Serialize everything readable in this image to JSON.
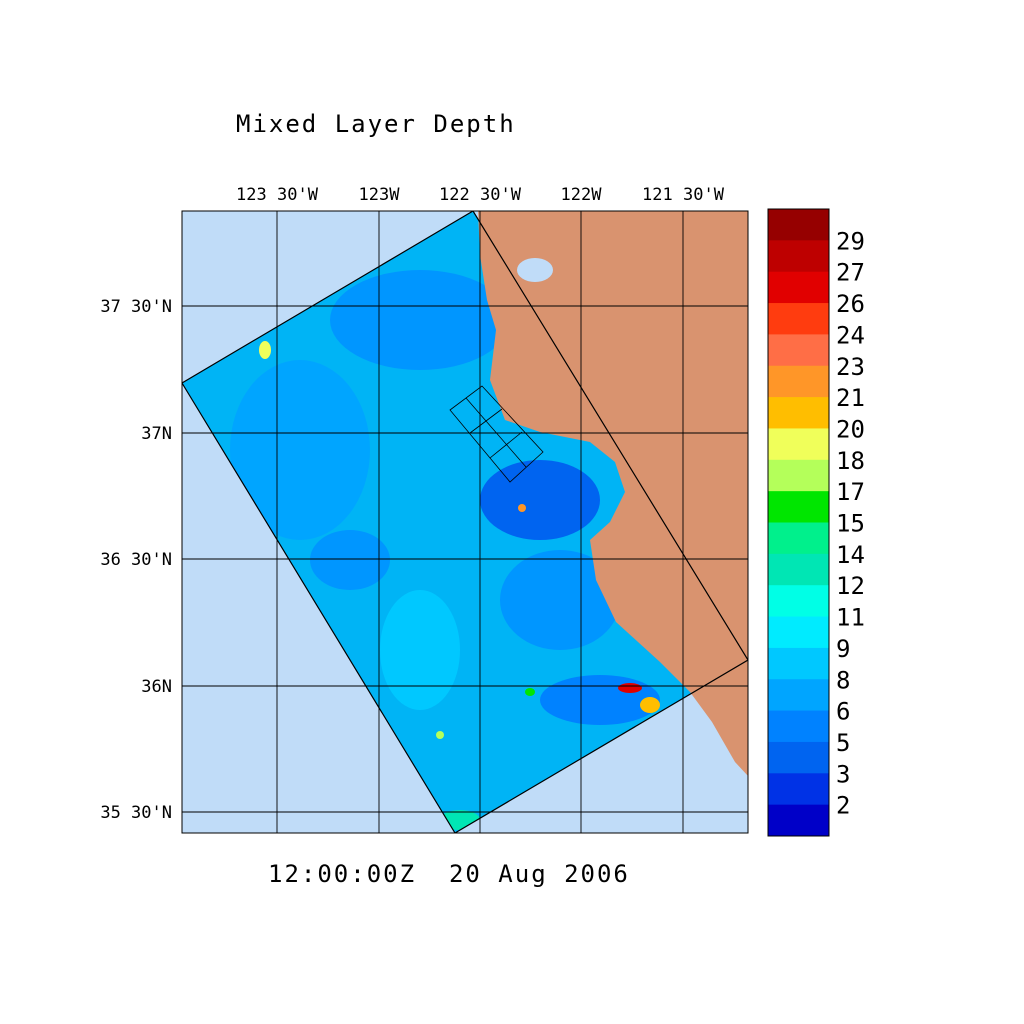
{
  "title": "Mixed Layer Depth",
  "longitude_labels": [
    "123 30'W",
    "123W",
    "122 30'W",
    "122W",
    "121 30'W"
  ],
  "latitude_labels": [
    "37 30'N",
    "37N",
    "36 30'N",
    "36N",
    "35 30'N"
  ],
  "colorbar": {
    "colors": [
      "#960000",
      "#be0000",
      "#e10000",
      "#ff3c0f",
      "#ff6e46",
      "#ff9628",
      "#ffbe00",
      "#f0ff5a",
      "#b4ff5a",
      "#00e600",
      "#00f08c",
      "#00e6b4",
      "#00ffe6",
      "#00ebff",
      "#00c8ff",
      "#00a5ff",
      "#0082ff",
      "#0064f0",
      "#0032e6",
      "#0000c8"
    ],
    "labels": [
      29,
      27,
      26,
      24,
      23,
      21,
      20,
      18,
      17,
      15,
      14,
      12,
      11,
      9,
      8,
      6,
      5,
      3,
      2
    ]
  },
  "timestamp": "12:00:00Z  20 Aug 2006"
}
